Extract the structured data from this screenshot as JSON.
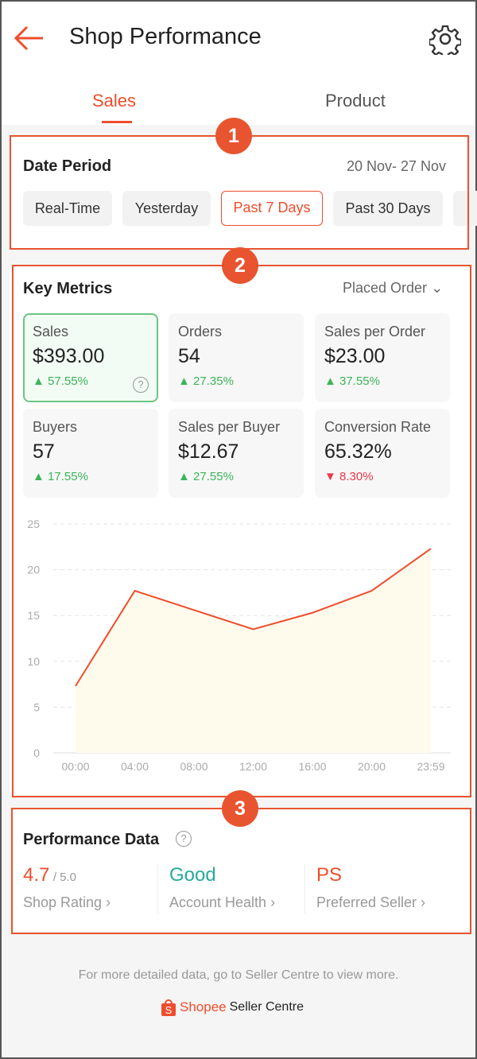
{
  "header": {
    "title": "Shop Performance",
    "back_icon": "arrow-left-icon",
    "settings_icon": "gear-icon"
  },
  "tabs": [
    {
      "label": "Sales",
      "active": true
    },
    {
      "label": "Product",
      "active": false
    }
  ],
  "annotations": [
    "1",
    "2",
    "3"
  ],
  "date_period": {
    "title": "Date Period",
    "range": "20 Nov- 27 Nov",
    "options": [
      "Real-Time",
      "Yesterday",
      "Past 7 Days",
      "Past 30 Days"
    ],
    "selected": "Past 7 Days"
  },
  "key_metrics": {
    "title": "Key Metrics",
    "dropdown": "Placed Order",
    "metrics": [
      {
        "label": "Sales",
        "value": "$393.00",
        "change": "57.55%",
        "dir": "up",
        "selected": true
      },
      {
        "label": "Orders",
        "value": "54",
        "change": "27.35%",
        "dir": "up"
      },
      {
        "label": "Sales per Order",
        "value": "$23.00",
        "change": "37.55%",
        "dir": "up"
      },
      {
        "label": "Buyers",
        "value": "57",
        "change": "17.55%",
        "dir": "up"
      },
      {
        "label": "Sales per Buyer",
        "value": "$12.67",
        "change": "27.55%",
        "dir": "up"
      },
      {
        "label": "Conversion Rate",
        "value": "65.32%",
        "change": "8.30%",
        "dir": "down"
      }
    ]
  },
  "chart_data": {
    "type": "area",
    "x": [
      "00:00",
      "04:00",
      "08:00",
      "12:00",
      "16:00",
      "20:00",
      "23:59"
    ],
    "values": [
      7.3,
      17.7,
      15.6,
      13.5,
      15.3,
      17.7,
      22.3
    ],
    "yticks": [
      "0",
      "5",
      "10",
      "15",
      "20",
      "25"
    ],
    "ylim": [
      0,
      25
    ],
    "grid": true,
    "line_color": "#ee4d2d",
    "fill_color": "#fffbec"
  },
  "performance": {
    "title": "Performance Data",
    "items": [
      {
        "value": "4.7",
        "suffix": "/ 5.0",
        "label": "Shop Rating",
        "color": "#ee4d2d"
      },
      {
        "value": "Good",
        "label": "Account Health",
        "color": "#26aa99"
      },
      {
        "value": "PS",
        "label": "Preferred Seller",
        "color": "#ee4d2d"
      }
    ]
  },
  "footer": {
    "text": "For more detailed data, go to Seller Centre to view more.",
    "brand": "Shopee",
    "brand_suffix": "Seller Centre"
  },
  "colors": {
    "accent": "#ee4d2d",
    "up": "#3cb45a",
    "down": "#e8394d",
    "annotation": "#e8542f"
  }
}
